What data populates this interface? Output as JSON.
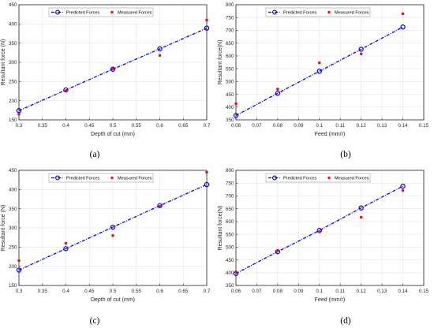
{
  "figure": {
    "captions": [
      "(a)",
      "(b)",
      "(c)",
      "(d)"
    ]
  },
  "colors": {
    "predicted": "#0000e6",
    "measured": "#e01818",
    "axis": "#262626",
    "grid": "#e6e6e6"
  },
  "chart_data": [
    {
      "type": "line",
      "caption": "(a)",
      "xlabel": "Depth of cut (mm)",
      "ylabel": "Resultant force (N)",
      "xlim": [
        0.3,
        0.7
      ],
      "ylim": [
        150,
        450
      ],
      "xticks": [
        "0.3",
        "0.35",
        "0.4",
        "0.45",
        "0.5",
        "0.55",
        "0.6",
        "0.65",
        "0.7"
      ],
      "yticks": [
        "150",
        "200",
        "250",
        "300",
        "350",
        "400",
        "450"
      ],
      "legend_position": "top",
      "grid": true,
      "series": [
        {
          "name": "Predicted Forces",
          "style": "line-circle",
          "x": [
            0.3,
            0.4,
            0.5,
            0.6,
            0.7
          ],
          "y": [
            174,
            228,
            282,
            335,
            389
          ]
        },
        {
          "name": "Measured Forces",
          "style": "marker",
          "x": [
            0.3,
            0.4,
            0.5,
            0.6,
            0.7
          ],
          "y": [
            165,
            226,
            283,
            318,
            410
          ]
        }
      ]
    },
    {
      "type": "line",
      "caption": "(b)",
      "xlabel": "Feed (mm/r)",
      "ylabel": "Resultant force(N)",
      "xlim": [
        0.06,
        0.15
      ],
      "ylim": [
        350,
        800
      ],
      "xticks": [
        "0.06",
        "0.07",
        "0.08",
        "0.09",
        "0.1",
        "0.11",
        "0.12",
        "0.13",
        "0.14",
        "0.15"
      ],
      "yticks": [
        "350",
        "400",
        "450",
        "500",
        "550",
        "600",
        "650",
        "700",
        "750",
        "800"
      ],
      "legend_position": "top",
      "grid": true,
      "series": [
        {
          "name": "Predicted Forces",
          "style": "line-circle",
          "x": [
            0.06,
            0.08,
            0.1,
            0.12,
            0.14
          ],
          "y": [
            367,
            454,
            540,
            626,
            713
          ]
        },
        {
          "name": "Measured Forces",
          "style": "marker",
          "x": [
            0.06,
            0.08,
            0.1,
            0.12,
            0.14
          ],
          "y": [
            413,
            470,
            573,
            608,
            765
          ]
        }
      ]
    },
    {
      "type": "line",
      "caption": "(c)",
      "xlabel": "Depth of cut (mm)",
      "ylabel": "Resultant force (N)",
      "xlim": [
        0.3,
        0.7
      ],
      "ylim": [
        150,
        450
      ],
      "xticks": [
        "0.3",
        "0.35",
        "0.4",
        "0.45",
        "0.5",
        "0.55",
        "0.6",
        "0.65",
        "0.7"
      ],
      "yticks": [
        "150",
        "200",
        "250",
        "300",
        "350",
        "400",
        "450"
      ],
      "legend_position": "top",
      "grid": true,
      "series": [
        {
          "name": "Predicted Forces",
          "style": "line-circle",
          "x": [
            0.3,
            0.4,
            0.5,
            0.6,
            0.7
          ],
          "y": [
            190,
            246,
            302,
            358,
            413
          ]
        },
        {
          "name": "Measured Forces",
          "style": "marker",
          "x": [
            0.3,
            0.4,
            0.5,
            0.6,
            0.7
          ],
          "y": [
            215,
            260,
            280,
            356,
            445
          ]
        }
      ]
    },
    {
      "type": "line",
      "caption": "(d)",
      "xlabel": "Feed (mm/r)",
      "ylabel": "Resultant force(N)",
      "xlim": [
        0.06,
        0.15
      ],
      "ylim": [
        350,
        800
      ],
      "xticks": [
        "0.06",
        "0.07",
        "0.08",
        "0.09",
        "0.1",
        "0.11",
        "0.12",
        "0.13",
        "0.14",
        "0.15"
      ],
      "yticks": [
        "350",
        "400",
        "450",
        "500",
        "550",
        "600",
        "650",
        "700",
        "750",
        "800"
      ],
      "legend_position": "top",
      "grid": true,
      "series": [
        {
          "name": "Predicted Forces",
          "style": "line-circle",
          "x": [
            0.06,
            0.08,
            0.1,
            0.12,
            0.14
          ],
          "y": [
            397,
            482,
            565,
            653,
            738
          ]
        },
        {
          "name": "Measured Forces",
          "style": "marker",
          "x": [
            0.06,
            0.08,
            0.1,
            0.12,
            0.14
          ],
          "y": [
            403,
            487,
            560,
            617,
            721
          ]
        }
      ]
    }
  ]
}
